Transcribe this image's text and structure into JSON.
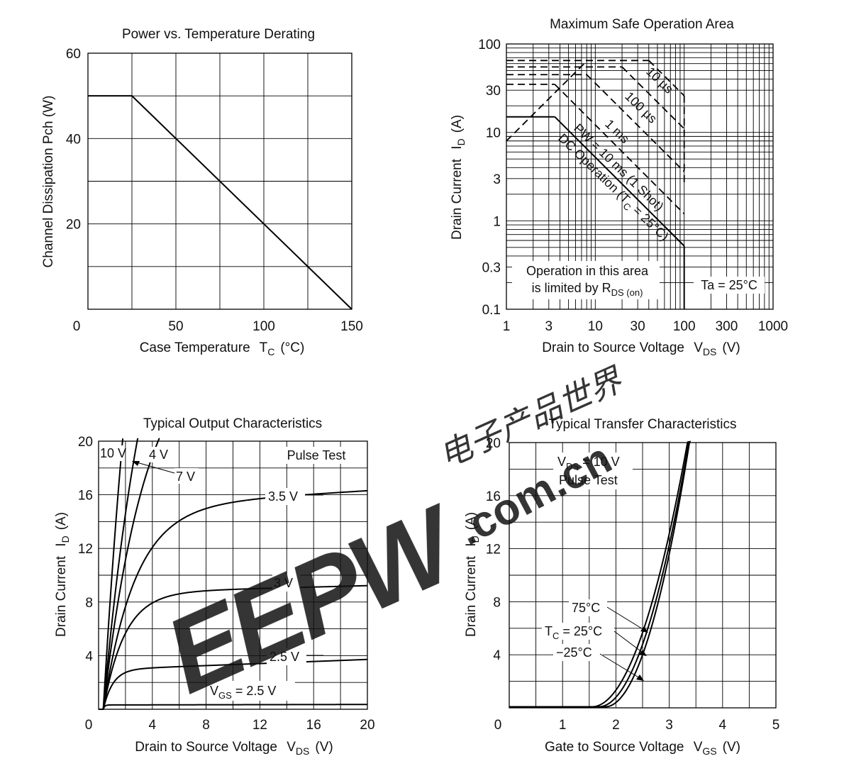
{
  "chart_data": [
    {
      "id": "derating",
      "type": "line",
      "title": "Power vs. Temperature Derating",
      "xlabel": "Case Temperature",
      "xlabel_sub": "C",
      "xlabel_unit": "(°C)",
      "ylabel": "Channel Dissipation  Pch  (W)",
      "xlim": [
        0,
        150
      ],
      "ylim": [
        0,
        60
      ],
      "xticks": [
        0,
        50,
        100,
        150
      ],
      "yticks": [
        20,
        40,
        60
      ],
      "grid": true,
      "series": [
        {
          "x": [
            0,
            25,
            150
          ],
          "y": [
            50,
            50,
            0
          ]
        }
      ]
    },
    {
      "id": "soa",
      "type": "line",
      "title": "Maximum Safe Operation Area",
      "xlabel": "Drain to Source Voltage",
      "xlabel_sub": "DS",
      "xlabel_unit": "(V)",
      "ylabel": "Drain Current",
      "ylabel_sub": "D",
      "ylabel_unit": "(A)",
      "xscale": "log",
      "yscale": "log",
      "xlim": [
        1,
        1000
      ],
      "ylim": [
        0.1,
        100
      ],
      "xticks": [
        "1",
        "3",
        "10",
        "30",
        "100",
        "300",
        "1000"
      ],
      "yticks": [
        "0.1",
        "0.3",
        "1",
        "3",
        "10",
        "30",
        "100"
      ],
      "grid": true,
      "curve_labels": [
        "10 µs",
        "100 µs",
        "1 ms",
        "PW = 10 ms (1 Shot)",
        "DC Operation (T",
        "C",
        " = 25°C)"
      ],
      "annotation_rds_line1": "Operation in this area",
      "annotation_rds_line2": "is limited by  R",
      "annotation_rds_sub": "DS (on)",
      "annotation_ta": "Ta = 25°C",
      "series": [
        {
          "x": [
            1,
            8
          ],
          "y": [
            8,
            64
          ]
        },
        {
          "x": [
            1,
            3.5
          ],
          "y": [
            15,
            15
          ]
        },
        {
          "x": [
            3.5,
            100
          ],
          "y": [
            15,
            0.52
          ]
        },
        {
          "x": [
            100,
            100
          ],
          "y": [
            0.52,
            0.1
          ]
        },
        {
          "x": [
            1,
            3.5
          ],
          "y": [
            35,
            35
          ]
        },
        {
          "x": [
            3.5,
            100
          ],
          "y": [
            35,
            1.2
          ]
        },
        {
          "x": [
            1,
            8
          ],
          "y": [
            45,
            45
          ]
        },
        {
          "x": [
            8,
            100
          ],
          "y": [
            45,
            3.6
          ]
        },
        {
          "x": [
            1,
            20
          ],
          "y": [
            55,
            55
          ]
        },
        {
          "x": [
            20,
            100
          ],
          "y": [
            55,
            11
          ]
        },
        {
          "x": [
            1,
            40
          ],
          "y": [
            65,
            65
          ]
        },
        {
          "x": [
            40,
            100
          ],
          "y": [
            65,
            26
          ]
        },
        {
          "x": [
            100,
            100
          ],
          "y": [
            26,
            2.5
          ]
        }
      ]
    },
    {
      "id": "output",
      "type": "line",
      "title": "Typical Output Characteristics",
      "xlabel": "Drain to Source Voltage",
      "xlabel_sub": "DS",
      "xlabel_unit": "(V)",
      "ylabel": "Drain Current",
      "ylabel_sub": "D",
      "ylabel_unit": "(A)",
      "xlim": [
        0,
        20
      ],
      "ylim": [
        0,
        20
      ],
      "xticks": [
        0,
        4,
        8,
        12,
        16,
        20
      ],
      "yticks": [
        4,
        8,
        12,
        16,
        20
      ],
      "grid": true,
      "pulse_label": "Pulse Test",
      "vgs_label_pre": "V",
      "vgs_label_sub": "GS",
      "vgs_label_post": " = 2.5  V",
      "series": [
        {
          "name": "10 V",
          "isat": 60,
          "k": 17
        },
        {
          "name": "7 V",
          "isat": 40,
          "k": 11
        },
        {
          "name": "4 V",
          "isat": 28,
          "k": 8.6
        },
        {
          "name": "3.5 V",
          "isat": 15.1,
          "k": 6.4,
          "slope": 0.004
        },
        {
          "name": "3 V",
          "isat": 8.7,
          "k": 5.5,
          "slope": 0.003
        },
        {
          "name": "2.5 V",
          "isat": 2.95,
          "k": 4.2,
          "slope": 0.013
        },
        {
          "name": "2.5 V",
          "isat": 0.32,
          "k": 3.2,
          "slope": 0.006
        }
      ]
    },
    {
      "id": "transfer",
      "type": "line",
      "title": "Typical Transfer Characteristics",
      "xlabel": "Gate to Source Voltage",
      "xlabel_sub": "GS",
      "xlabel_unit": "(V)",
      "ylabel": "Drain Current",
      "ylabel_sub": "D",
      "ylabel_unit": "(A)",
      "xlim": [
        0,
        5
      ],
      "ylim": [
        0,
        20
      ],
      "xticks": [
        0,
        1,
        2,
        3,
        4,
        5
      ],
      "yticks": [
        4,
        8,
        12,
        16,
        20
      ],
      "grid": true,
      "cond_pre": "V",
      "cond_sub": "DS",
      "cond_post": " = 10 V",
      "pulse_label": "Pulse Test",
      "series": [
        {
          "name": "75°C",
          "vth": 1.55,
          "k": 6.2
        },
        {
          "name": "T",
          "name_sub": "C",
          "name_post": " = 25°C",
          "vth": 1.68,
          "k": 7.0
        },
        {
          "name": "−25°C",
          "vth": 1.8,
          "k": 8.0
        }
      ]
    }
  ],
  "watermark": {
    "brand": "EEPW",
    "domain": ".com.cn",
    "chinese": "电子产品世界",
    "color": "#e53935"
  }
}
